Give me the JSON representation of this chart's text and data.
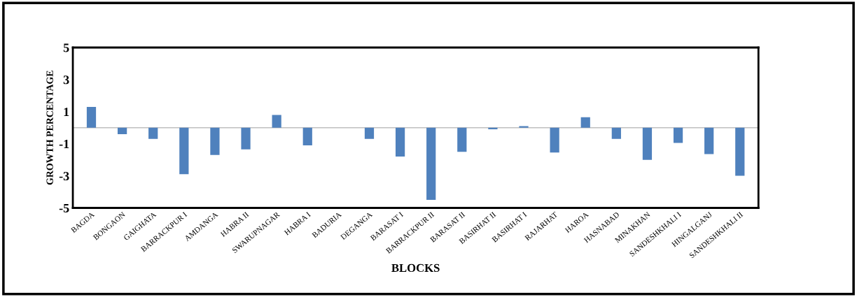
{
  "chart_data": {
    "type": "bar",
    "xlabel": "BLOCKS",
    "ylabel": "GROWTH PERCENTAGE",
    "categories": [
      "BAGDA",
      "BONGAON",
      "GAIGHATA",
      "BARRACKPUR I",
      "AMDANGA",
      "HABRA II",
      "SWARUPNAGAR",
      "HABRA I",
      "BADURIA",
      "DEGANGA",
      "BARASAT I",
      "BARRACKPUR II",
      "BARASAT II",
      "BASIRHAT II",
      "BASIRHAT I",
      "RAJARHAT",
      "HAROA",
      "HASNABAD",
      "MINAKHAN",
      "SANDESHKHALI I",
      "HINGALGANJ",
      "SANDESHKHALI II"
    ],
    "values": [
      1.3,
      -0.4,
      -0.7,
      -2.9,
      -1.7,
      -1.35,
      0.8,
      -1.1,
      0,
      -0.7,
      -1.8,
      -4.5,
      -1.5,
      -0.1,
      0.1,
      -1.55,
      0.65,
      -0.7,
      -2.0,
      -0.95,
      -1.65,
      -3.0
    ],
    "color": "#4f81bd",
    "ylim": [
      -5,
      5
    ],
    "yticks": [
      -5,
      -3,
      -1,
      1,
      3,
      5
    ],
    "grid": false,
    "legend": false
  }
}
